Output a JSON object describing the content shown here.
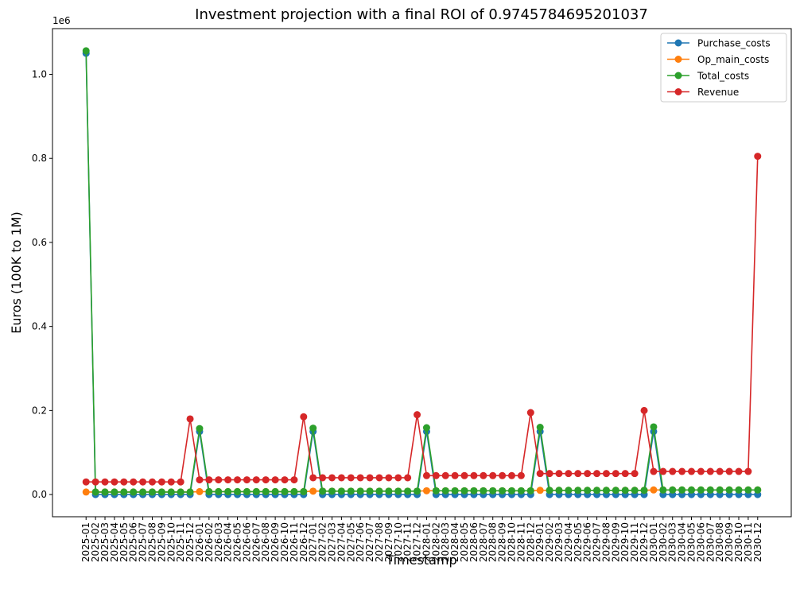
{
  "chart_data": {
    "type": "line",
    "title": "Investment projection with a final ROI of 0.9745784695201037",
    "x_label": "Timestamp",
    "y_label": "Euros (100K to 1M)",
    "y_offset_label": "1e6",
    "categories": [
      "2025-01",
      "2025-02",
      "2025-03",
      "2025-04",
      "2025-05",
      "2025-06",
      "2025-07",
      "2025-08",
      "2025-09",
      "2025-10",
      "2025-11",
      "2025-12",
      "2026-01",
      "2026-02",
      "2026-03",
      "2026-04",
      "2026-05",
      "2026-06",
      "2026-07",
      "2026-08",
      "2026-09",
      "2026-10",
      "2026-11",
      "2026-12",
      "2027-01",
      "2027-02",
      "2027-03",
      "2027-04",
      "2027-05",
      "2027-06",
      "2027-07",
      "2027-08",
      "2027-09",
      "2027-10",
      "2027-11",
      "2027-12",
      "2028-01",
      "2028-02",
      "2028-03",
      "2028-04",
      "2028-05",
      "2028-06",
      "2028-07",
      "2028-08",
      "2028-09",
      "2028-10",
      "2028-11",
      "2028-12",
      "2029-01",
      "2029-02",
      "2029-03",
      "2029-04",
      "2029-05",
      "2029-06",
      "2029-07",
      "2029-08",
      "2029-09",
      "2029-10",
      "2029-11",
      "2029-12",
      "2030-01",
      "2030-02",
      "2030-03",
      "2030-04",
      "2030-05",
      "2030-06",
      "2030-07",
      "2030-08",
      "2030-09",
      "2030-10",
      "2030-11",
      "2030-12"
    ],
    "series": [
      {
        "name": "Purchase_costs",
        "color": "#1f77b4",
        "values": [
          1050000,
          0,
          0,
          0,
          0,
          0,
          0,
          0,
          0,
          0,
          0,
          0,
          150000,
          0,
          0,
          0,
          0,
          0,
          0,
          0,
          0,
          0,
          0,
          0,
          150000,
          0,
          0,
          0,
          0,
          0,
          0,
          0,
          0,
          0,
          0,
          0,
          150000,
          0,
          0,
          0,
          0,
          0,
          0,
          0,
          0,
          0,
          0,
          0,
          150000,
          0,
          0,
          0,
          0,
          0,
          0,
          0,
          0,
          0,
          0,
          0,
          150000,
          0,
          0,
          0,
          0,
          0,
          0,
          0,
          0,
          0,
          0,
          0
        ]
      },
      {
        "name": "Op_main_costs",
        "color": "#ff7f0e",
        "values": [
          6000,
          6000,
          6000,
          6000,
          6000,
          6000,
          6000,
          6000,
          6000,
          6000,
          6000,
          6000,
          7000,
          7000,
          7000,
          7000,
          7000,
          7000,
          7000,
          7000,
          7000,
          7000,
          7000,
          7000,
          8000,
          8000,
          8000,
          8000,
          8000,
          8000,
          8000,
          8000,
          8000,
          8000,
          8000,
          8000,
          9000,
          9000,
          9000,
          9000,
          9000,
          9000,
          9000,
          9000,
          9000,
          9000,
          9000,
          9000,
          10000,
          10000,
          10000,
          10000,
          10000,
          10000,
          10000,
          10000,
          10000,
          10000,
          10000,
          10000,
          11000,
          11000,
          11000,
          11000,
          11000,
          11000,
          11000,
          11000,
          11000,
          11000,
          11000,
          11000
        ]
      },
      {
        "name": "Total_costs",
        "color": "#2ca02c",
        "values": [
          1056000,
          6000,
          6000,
          6000,
          6000,
          6000,
          6000,
          6000,
          6000,
          6000,
          6000,
          6000,
          157000,
          7000,
          7000,
          7000,
          7000,
          7000,
          7000,
          7000,
          7000,
          7000,
          7000,
          7000,
          158000,
          8000,
          8000,
          8000,
          8000,
          8000,
          8000,
          8000,
          8000,
          8000,
          8000,
          8000,
          159000,
          9000,
          9000,
          9000,
          9000,
          9000,
          9000,
          9000,
          9000,
          9000,
          9000,
          9000,
          160000,
          10000,
          10000,
          10000,
          10000,
          10000,
          10000,
          10000,
          10000,
          10000,
          10000,
          10000,
          161000,
          11000,
          11000,
          11000,
          11000,
          11000,
          11000,
          11000,
          11000,
          11000,
          11000,
          11000
        ]
      },
      {
        "name": "Revenue",
        "color": "#d62728",
        "values": [
          30000,
          30000,
          30000,
          30000,
          30000,
          30000,
          30000,
          30000,
          30000,
          30000,
          30000,
          180000,
          35000,
          35000,
          35000,
          35000,
          35000,
          35000,
          35000,
          35000,
          35000,
          35000,
          35000,
          185000,
          40000,
          40000,
          40000,
          40000,
          40000,
          40000,
          40000,
          40000,
          40000,
          40000,
          40000,
          190000,
          45000,
          45000,
          45000,
          45000,
          45000,
          45000,
          45000,
          45000,
          45000,
          45000,
          45000,
          195000,
          50000,
          50000,
          50000,
          50000,
          50000,
          50000,
          50000,
          50000,
          50000,
          50000,
          50000,
          200000,
          55000,
          55000,
          55000,
          55000,
          55000,
          55000,
          55000,
          55000,
          55000,
          55000,
          55000,
          805000
        ]
      }
    ],
    "ylim": [
      -52800,
      1108800
    ],
    "yticks": [
      {
        "value": 0,
        "label": "0.0"
      },
      {
        "value": 200000,
        "label": "0.2"
      },
      {
        "value": 400000,
        "label": "0.4"
      },
      {
        "value": 600000,
        "label": "0.6"
      },
      {
        "value": 800000,
        "label": "0.8"
      },
      {
        "value": 1000000,
        "label": "1.0"
      }
    ],
    "grid": false,
    "legend": "upper right"
  }
}
